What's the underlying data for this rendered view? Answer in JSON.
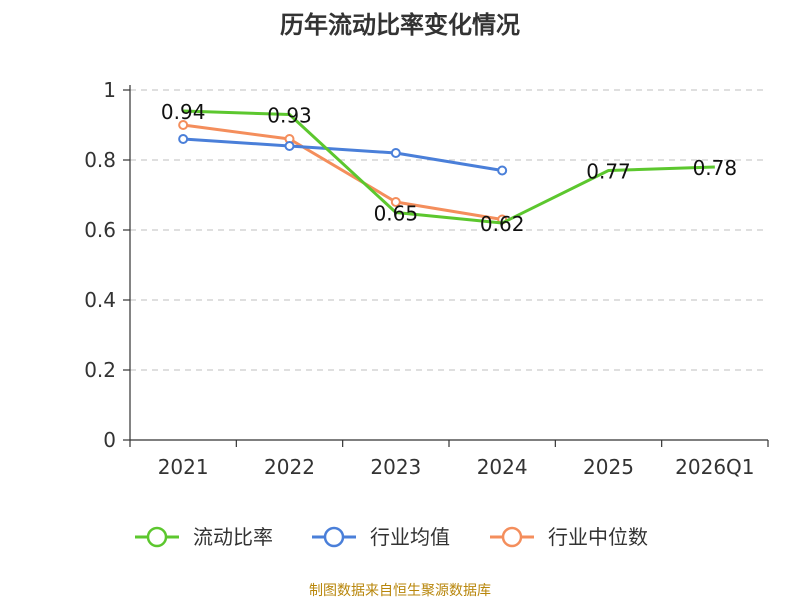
{
  "chart_data": {
    "type": "line",
    "title": "历年流动比率变化情况",
    "categories": [
      "2021",
      "2022",
      "2023",
      "2024",
      "2025",
      "2026Q1"
    ],
    "yticks": [
      "0",
      "0.2",
      "0.4",
      "0.6",
      "0.8",
      "1"
    ],
    "ylim": [
      0,
      1
    ],
    "grid": true,
    "legend_position": "bottom",
    "series": [
      {
        "name": "流动比率",
        "color": "#5cc72e",
        "values": [
          0.94,
          0.93,
          0.65,
          0.62,
          0.77,
          0.78
        ],
        "labels": [
          "0.94",
          "0.93",
          "0.65",
          "0.62",
          "0.77",
          "0.78"
        ],
        "marker": "none"
      },
      {
        "name": "行业均值",
        "color": "#4a7fd9",
        "values": [
          0.86,
          0.84,
          0.82,
          0.77,
          null,
          null
        ],
        "marker": "circle"
      },
      {
        "name": "行业中位数",
        "color": "#f48e5c",
        "values": [
          0.9,
          0.86,
          0.68,
          0.63,
          null,
          null
        ],
        "marker": "circle"
      }
    ],
    "source": "制图数据来自恒生聚源数据库"
  }
}
